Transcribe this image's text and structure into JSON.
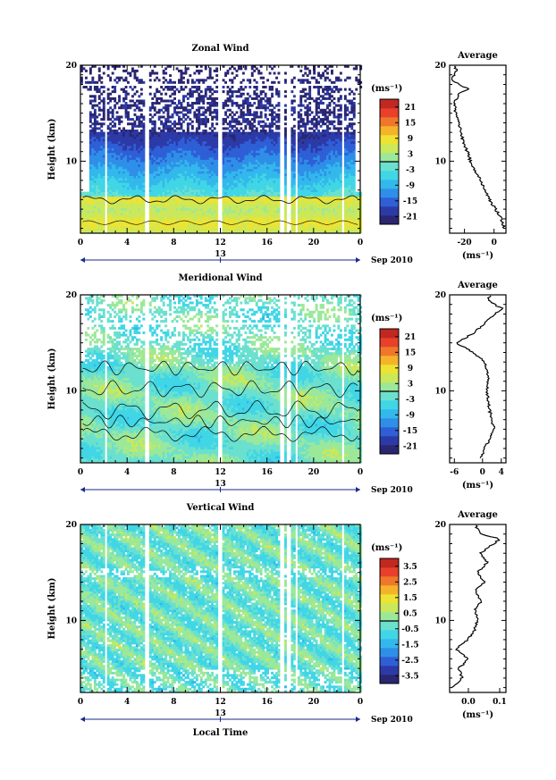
{
  "colors": {
    "scale": [
      "#2a2670",
      "#2c3aa8",
      "#2f5fd6",
      "#2f8fe8",
      "#33b8ec",
      "#40d6e6",
      "#6be0cf",
      "#9be89a",
      "#cbe85a",
      "#ede332",
      "#f5b32a",
      "#f0772a",
      "#e8402a",
      "#c02820"
    ],
    "contour": "#000000",
    "axis": "#000000",
    "timeline": "#1a2a8a"
  },
  "chart_data": [
    {
      "type": "heatmap",
      "title": "Zonal Wind",
      "ylabel": "Height (km)",
      "xlabel": "",
      "xticks": [
        "0",
        "4",
        "8",
        "12",
        "16",
        "20",
        "0"
      ],
      "xlim": [
        0,
        24
      ],
      "ylim": [
        2.5,
        20
      ],
      "yticks": [
        "10",
        "20"
      ],
      "date_marker": "13",
      "date_label": "Sep 2010",
      "colorbar": {
        "unit": "(ms⁻¹)",
        "ticks": [
          "21",
          "15",
          "9",
          "3",
          "-3",
          "-9",
          "-15",
          "-21"
        ],
        "range": [
          -24,
          24
        ]
      },
      "average": {
        "title": "Average",
        "xlabel": "(ms⁻¹)",
        "xticks": [
          "-20",
          "0"
        ],
        "xlim": [
          -30,
          8
        ],
        "ylim": [
          2.5,
          20
        ],
        "yticks": [
          "10",
          "20"
        ],
        "profile": [
          [
            3,
            7
          ],
          [
            4,
            5
          ],
          [
            5,
            1
          ],
          [
            6,
            -3
          ],
          [
            7,
            -6
          ],
          [
            8,
            -9
          ],
          [
            9,
            -13
          ],
          [
            10,
            -16
          ],
          [
            11,
            -18
          ],
          [
            12,
            -21
          ],
          [
            13,
            -22
          ],
          [
            14,
            -24
          ],
          [
            15,
            -26
          ],
          [
            16,
            -27
          ],
          [
            17,
            -24
          ],
          [
            17.5,
            -17
          ],
          [
            18,
            -24
          ],
          [
            18.5,
            -28
          ],
          [
            19,
            -27
          ],
          [
            19.5,
            -25
          ],
          [
            20,
            -28
          ]
        ]
      }
    },
    {
      "type": "heatmap",
      "title": "Meridional Wind",
      "ylabel": "Height (km)",
      "xlabel": "",
      "xticks": [
        "0",
        "4",
        "8",
        "12",
        "16",
        "20",
        "0"
      ],
      "xlim": [
        0,
        24
      ],
      "ylim": [
        2.5,
        20
      ],
      "yticks": [
        "10",
        "20"
      ],
      "date_marker": "13",
      "date_label": "Sep 2010",
      "colorbar": {
        "unit": "(ms⁻¹)",
        "ticks": [
          "21",
          "15",
          "9",
          "3",
          "-3",
          "-9",
          "-15",
          "-21"
        ],
        "range": [
          -24,
          24
        ]
      },
      "average": {
        "title": "Average",
        "xlabel": "(ms⁻¹)",
        "xticks": [
          "-6",
          "0",
          "4"
        ],
        "xlim": [
          -7,
          5
        ],
        "ylim": [
          2.5,
          20
        ],
        "yticks": [
          "10",
          "20"
        ],
        "profile": [
          [
            3,
            -0.5
          ],
          [
            4,
            0.5
          ],
          [
            5,
            1.5
          ],
          [
            6,
            2.5
          ],
          [
            7,
            2.0
          ],
          [
            8,
            1.5
          ],
          [
            9,
            1.2
          ],
          [
            10,
            1.0
          ],
          [
            11,
            1.2
          ],
          [
            12,
            1.0
          ],
          [
            13,
            0.5
          ],
          [
            14,
            -2.0
          ],
          [
            15,
            -5.5
          ],
          [
            16,
            -2.0
          ],
          [
            17,
            0.5
          ],
          [
            18,
            2.5
          ],
          [
            18.5,
            4.5
          ],
          [
            19,
            2.5
          ],
          [
            19.5,
            1.0
          ],
          [
            20,
            2.0
          ]
        ]
      }
    },
    {
      "type": "heatmap",
      "title": "Vertical Wind",
      "ylabel": "Height (km)",
      "xlabel": "Local Time",
      "xticks": [
        "0",
        "4",
        "8",
        "12",
        "16",
        "20",
        "0"
      ],
      "xlim": [
        0,
        24
      ],
      "ylim": [
        2.5,
        20
      ],
      "yticks": [
        "10",
        "20"
      ],
      "date_marker": "13",
      "date_label": "Sep 2010",
      "colorbar": {
        "unit": "(ms⁻¹)",
        "ticks": [
          "3.5",
          "2.5",
          "1.5",
          "0.5",
          "-0.5",
          "-1.5",
          "-2.5",
          "-3.5"
        ],
        "range": [
          -4,
          4
        ]
      },
      "average": {
        "title": "Average",
        "xlabel": "(ms⁻¹)",
        "xticks": [
          "0.0",
          "0.1"
        ],
        "xlim": [
          -0.06,
          0.12
        ],
        "ylim": [
          2.5,
          20
        ],
        "yticks": [
          "10",
          "20"
        ],
        "profile": [
          [
            3,
            -0.05
          ],
          [
            4,
            -0.02
          ],
          [
            5,
            -0.03
          ],
          [
            6,
            0.0
          ],
          [
            7,
            -0.04
          ],
          [
            8,
            0.0
          ],
          [
            9,
            0.02
          ],
          [
            10,
            0.03
          ],
          [
            11,
            0.02
          ],
          [
            12,
            0.04
          ],
          [
            13,
            0.02
          ],
          [
            14,
            0.05
          ],
          [
            15,
            0.03
          ],
          [
            16,
            0.06
          ],
          [
            17,
            0.04
          ],
          [
            18,
            0.08
          ],
          [
            18.5,
            0.1
          ],
          [
            19,
            0.04
          ],
          [
            19.5,
            0.03
          ],
          [
            20,
            0.02
          ]
        ]
      }
    }
  ]
}
